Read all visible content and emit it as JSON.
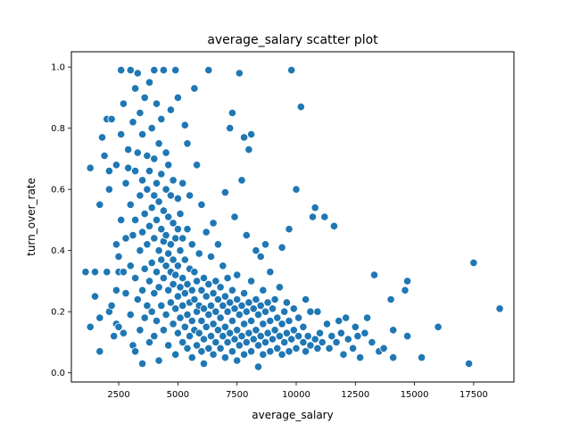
{
  "chart_data": {
    "type": "scatter",
    "title": "average_salary scatter plot",
    "xlabel": "average_salary",
    "ylabel": "turn_over_rate",
    "xlim": [
      500,
      19200
    ],
    "ylim": [
      -0.03,
      1.05
    ],
    "xticks": [
      2500,
      5000,
      7500,
      10000,
      12500,
      15000,
      17500
    ],
    "xtick_labels": [
      "2500",
      "5000",
      "7500",
      "10000",
      "12500",
      "15000",
      "17500"
    ],
    "yticks": [
      0.0,
      0.2,
      0.4,
      0.6,
      0.8,
      1.0
    ],
    "ytick_labels": [
      "0.0",
      "0.2",
      "0.4",
      "0.6",
      "0.8",
      "1.0"
    ],
    "grid": false,
    "legend": "none",
    "marker_color": "#1f77b4",
    "marker_edge": "#ffffff",
    "points": [
      [
        1100,
        0.33
      ],
      [
        1300,
        0.15
      ],
      [
        1300,
        0.67
      ],
      [
        1500,
        0.25
      ],
      [
        1500,
        0.33
      ],
      [
        1700,
        0.07
      ],
      [
        1700,
        0.18
      ],
      [
        1700,
        0.55
      ],
      [
        1800,
        0.77
      ],
      [
        1900,
        0.71
      ],
      [
        2000,
        0.33
      ],
      [
        2000,
        0.83
      ],
      [
        2100,
        0.2
      ],
      [
        2100,
        0.6
      ],
      [
        2100,
        0.66
      ],
      [
        2200,
        0.83
      ],
      [
        2200,
        0.22
      ],
      [
        2300,
        0.12
      ],
      [
        2400,
        0.16
      ],
      [
        2400,
        0.27
      ],
      [
        2400,
        0.42
      ],
      [
        2400,
        0.68
      ],
      [
        2500,
        0.38
      ],
      [
        2500,
        0.15
      ],
      [
        2500,
        0.33
      ],
      [
        2600,
        0.5
      ],
      [
        2600,
        0.78
      ],
      [
        2600,
        0.99
      ],
      [
        2700,
        0.88
      ],
      [
        2700,
        0.33
      ],
      [
        2700,
        0.13
      ],
      [
        2800,
        0.44
      ],
      [
        2800,
        0.62
      ],
      [
        2800,
        0.26
      ],
      [
        2900,
        0.73
      ],
      [
        2900,
        0.67
      ],
      [
        3000,
        0.55
      ],
      [
        3000,
        0.35
      ],
      [
        3000,
        0.19
      ],
      [
        3000,
        0.99
      ],
      [
        3100,
        0.09
      ],
      [
        3100,
        0.45
      ],
      [
        3100,
        0.82
      ],
      [
        3200,
        0.07
      ],
      [
        3200,
        0.5
      ],
      [
        3200,
        0.66
      ],
      [
        3200,
        0.31
      ],
      [
        3200,
        0.93
      ],
      [
        3300,
        0.24
      ],
      [
        3300,
        0.72
      ],
      [
        3300,
        0.98
      ],
      [
        3400,
        0.4
      ],
      [
        3400,
        0.58
      ],
      [
        3400,
        0.14
      ],
      [
        3400,
        0.85
      ],
      [
        3500,
        0.03
      ],
      [
        3500,
        0.27
      ],
      [
        3500,
        0.46
      ],
      [
        3500,
        0.63
      ],
      [
        3500,
        0.78
      ],
      [
        3600,
        0.34
      ],
      [
        3600,
        0.52
      ],
      [
        3600,
        0.18
      ],
      [
        3600,
        0.9
      ],
      [
        3700,
        0.42
      ],
      [
        3700,
        0.6
      ],
      [
        3700,
        0.22
      ],
      [
        3700,
        0.71
      ],
      [
        3800,
        0.1
      ],
      [
        3800,
        0.3
      ],
      [
        3800,
        0.48
      ],
      [
        3800,
        0.66
      ],
      [
        3800,
        0.95
      ],
      [
        3900,
        0.36
      ],
      [
        3900,
        0.54
      ],
      [
        3900,
        0.2
      ],
      [
        3900,
        0.8
      ],
      [
        4000,
        0.26
      ],
      [
        4000,
        0.44
      ],
      [
        4000,
        0.58
      ],
      [
        4000,
        0.12
      ],
      [
        4000,
        0.7
      ],
      [
        4000,
        0.99
      ],
      [
        4100,
        0.33
      ],
      [
        4100,
        0.5
      ],
      [
        4100,
        0.62
      ],
      [
        4100,
        0.17
      ],
      [
        4100,
        0.88
      ],
      [
        4200,
        0.04
      ],
      [
        4200,
        0.28
      ],
      [
        4200,
        0.4
      ],
      [
        4200,
        0.56
      ],
      [
        4200,
        0.75
      ],
      [
        4300,
        0.22
      ],
      [
        4300,
        0.37
      ],
      [
        4300,
        0.47
      ],
      [
        4300,
        0.65
      ],
      [
        4300,
        0.83
      ],
      [
        4400,
        0.14
      ],
      [
        4400,
        0.31
      ],
      [
        4400,
        0.43
      ],
      [
        4400,
        0.53
      ],
      [
        4400,
        0.99
      ],
      [
        4500,
        0.19
      ],
      [
        4500,
        0.35
      ],
      [
        4500,
        0.45
      ],
      [
        4500,
        0.6
      ],
      [
        4500,
        0.72
      ],
      [
        4600,
        0.09
      ],
      [
        4600,
        0.27
      ],
      [
        4600,
        0.39
      ],
      [
        4600,
        0.51
      ],
      [
        4600,
        0.68
      ],
      [
        4700,
        0.23
      ],
      [
        4700,
        0.33
      ],
      [
        4700,
        0.42
      ],
      [
        4700,
        0.58
      ],
      [
        4700,
        0.86
      ],
      [
        4800,
        0.16
      ],
      [
        4800,
        0.29
      ],
      [
        4800,
        0.37
      ],
      [
        4800,
        0.49
      ],
      [
        4800,
        0.63
      ],
      [
        4900,
        0.06
      ],
      [
        4900,
        0.21
      ],
      [
        4900,
        0.32
      ],
      [
        4900,
        0.44
      ],
      [
        4900,
        0.99
      ],
      [
        5000,
        0.13
      ],
      [
        5000,
        0.25
      ],
      [
        5000,
        0.35
      ],
      [
        5000,
        0.47
      ],
      [
        5000,
        0.57
      ],
      [
        5000,
        0.9
      ],
      [
        5100,
        0.18
      ],
      [
        5100,
        0.28
      ],
      [
        5100,
        0.4
      ],
      [
        5100,
        0.52
      ],
      [
        5200,
        0.1
      ],
      [
        5200,
        0.22
      ],
      [
        5200,
        0.31
      ],
      [
        5200,
        0.44
      ],
      [
        5200,
        0.62
      ],
      [
        5300,
        0.15
      ],
      [
        5300,
        0.26
      ],
      [
        5300,
        0.37
      ],
      [
        5300,
        0.81
      ],
      [
        5400,
        0.08
      ],
      [
        5400,
        0.19
      ],
      [
        5400,
        0.29
      ],
      [
        5400,
        0.47
      ],
      [
        5400,
        0.75
      ],
      [
        5500,
        0.12
      ],
      [
        5500,
        0.23
      ],
      [
        5500,
        0.34
      ],
      [
        5500,
        0.58
      ],
      [
        5600,
        0.05
      ],
      [
        5600,
        0.17
      ],
      [
        5600,
        0.27
      ],
      [
        5600,
        0.42
      ],
      [
        5700,
        0.14
      ],
      [
        5700,
        0.24
      ],
      [
        5700,
        0.33
      ],
      [
        5700,
        0.93
      ],
      [
        5800,
        0.09
      ],
      [
        5800,
        0.2
      ],
      [
        5800,
        0.3
      ],
      [
        5800,
        0.68
      ],
      [
        5900,
        0.13
      ],
      [
        5900,
        0.22
      ],
      [
        5900,
        0.39
      ],
      [
        6000,
        0.07
      ],
      [
        6000,
        0.17
      ],
      [
        6000,
        0.27
      ],
      [
        6000,
        0.55
      ],
      [
        6100,
        0.11
      ],
      [
        6100,
        0.21
      ],
      [
        6100,
        0.31
      ],
      [
        6100,
        0.03
      ],
      [
        6200,
        0.15
      ],
      [
        6200,
        0.25
      ],
      [
        6200,
        0.46
      ],
      [
        6300,
        0.08
      ],
      [
        6300,
        0.19
      ],
      [
        6300,
        0.29
      ],
      [
        6300,
        0.99
      ],
      [
        6400,
        0.12
      ],
      [
        6400,
        0.22
      ],
      [
        6400,
        0.38
      ],
      [
        6500,
        0.06
      ],
      [
        6500,
        0.16
      ],
      [
        6500,
        0.26
      ],
      [
        6500,
        0.49
      ],
      [
        6600,
        0.1
      ],
      [
        6600,
        0.2
      ],
      [
        6600,
        0.3
      ],
      [
        6700,
        0.14
      ],
      [
        6700,
        0.24
      ],
      [
        6700,
        0.42
      ],
      [
        6800,
        0.08
      ],
      [
        6800,
        0.18
      ],
      [
        6800,
        0.28
      ],
      [
        6900,
        0.12
      ],
      [
        6900,
        0.22
      ],
      [
        6900,
        0.35
      ],
      [
        7000,
        0.05
      ],
      [
        7000,
        0.15
      ],
      [
        7000,
        0.25
      ],
      [
        7000,
        0.59
      ],
      [
        7100,
        0.1
      ],
      [
        7100,
        0.2
      ],
      [
        7100,
        0.31
      ],
      [
        7200,
        0.13
      ],
      [
        7200,
        0.23
      ],
      [
        7200,
        0.8
      ],
      [
        7300,
        0.07
      ],
      [
        7300,
        0.17
      ],
      [
        7300,
        0.27
      ],
      [
        7300,
        0.85
      ],
      [
        7400,
        0.11
      ],
      [
        7400,
        0.21
      ],
      [
        7400,
        0.51
      ],
      [
        7500,
        0.04
      ],
      [
        7500,
        0.14
      ],
      [
        7500,
        0.24
      ],
      [
        7500,
        0.32
      ],
      [
        7600,
        0.09
      ],
      [
        7600,
        0.19
      ],
      [
        7600,
        0.98
      ],
      [
        7700,
        0.12
      ],
      [
        7700,
        0.22
      ],
      [
        7700,
        0.63
      ],
      [
        7800,
        0.06
      ],
      [
        7800,
        0.16
      ],
      [
        7800,
        0.26
      ],
      [
        7800,
        0.77
      ],
      [
        7900,
        0.1
      ],
      [
        7900,
        0.2
      ],
      [
        7900,
        0.45
      ],
      [
        8000,
        0.13
      ],
      [
        8000,
        0.23
      ],
      [
        8000,
        0.73
      ],
      [
        8100,
        0.07
      ],
      [
        8100,
        0.17
      ],
      [
        8100,
        0.3
      ],
      [
        8100,
        0.78
      ],
      [
        8200,
        0.11
      ],
      [
        8200,
        0.21
      ],
      [
        8300,
        0.14
      ],
      [
        8300,
        0.24
      ],
      [
        8300,
        0.4
      ],
      [
        8400,
        0.02
      ],
      [
        8400,
        0.09
      ],
      [
        8400,
        0.19
      ],
      [
        8500,
        0.12
      ],
      [
        8500,
        0.22
      ],
      [
        8500,
        0.38
      ],
      [
        8600,
        0.06
      ],
      [
        8600,
        0.16
      ],
      [
        8600,
        0.27
      ],
      [
        8700,
        0.1
      ],
      [
        8700,
        0.2
      ],
      [
        8700,
        0.42
      ],
      [
        8800,
        0.13
      ],
      [
        8800,
        0.23
      ],
      [
        8900,
        0.07
      ],
      [
        8900,
        0.17
      ],
      [
        8900,
        0.33
      ],
      [
        9000,
        0.11
      ],
      [
        9000,
        0.21
      ],
      [
        9100,
        0.14
      ],
      [
        9100,
        0.24
      ],
      [
        9200,
        0.08
      ],
      [
        9200,
        0.18
      ],
      [
        9300,
        0.12
      ],
      [
        9300,
        0.28
      ],
      [
        9400,
        0.06
      ],
      [
        9400,
        0.16
      ],
      [
        9400,
        0.41
      ],
      [
        9500,
        0.1
      ],
      [
        9500,
        0.2
      ],
      [
        9600,
        0.13
      ],
      [
        9600,
        0.23
      ],
      [
        9700,
        0.07
      ],
      [
        9700,
        0.17
      ],
      [
        9700,
        0.47
      ],
      [
        9800,
        0.11
      ],
      [
        9800,
        0.99
      ],
      [
        9900,
        0.14
      ],
      [
        9900,
        0.21
      ],
      [
        10000,
        0.08
      ],
      [
        10000,
        0.6
      ],
      [
        10100,
        0.12
      ],
      [
        10100,
        0.18
      ],
      [
        10200,
        0.87
      ],
      [
        10300,
        0.1
      ],
      [
        10300,
        0.15
      ],
      [
        10400,
        0.07
      ],
      [
        10400,
        0.24
      ],
      [
        10500,
        0.12
      ],
      [
        10600,
        0.09
      ],
      [
        10600,
        0.2
      ],
      [
        10700,
        0.51
      ],
      [
        10800,
        0.11
      ],
      [
        10800,
        0.54
      ],
      [
        10900,
        0.08
      ],
      [
        10900,
        0.2
      ],
      [
        11000,
        0.13
      ],
      [
        11100,
        0.1
      ],
      [
        11200,
        0.51
      ],
      [
        11300,
        0.16
      ],
      [
        11400,
        0.08
      ],
      [
        11500,
        0.12
      ],
      [
        11600,
        0.48
      ],
      [
        11700,
        0.1
      ],
      [
        11800,
        0.17
      ],
      [
        11900,
        0.13
      ],
      [
        12000,
        0.06
      ],
      [
        12100,
        0.18
      ],
      [
        12200,
        0.11
      ],
      [
        12400,
        0.08
      ],
      [
        12500,
        0.15
      ],
      [
        12600,
        0.12
      ],
      [
        12700,
        0.05
      ],
      [
        12900,
        0.13
      ],
      [
        13000,
        0.18
      ],
      [
        13200,
        0.1
      ],
      [
        13300,
        0.32
      ],
      [
        13500,
        0.07
      ],
      [
        13700,
        0.08
      ],
      [
        14000,
        0.24
      ],
      [
        14100,
        0.14
      ],
      [
        14100,
        0.05
      ],
      [
        14600,
        0.27
      ],
      [
        14700,
        0.3
      ],
      [
        14700,
        0.12
      ],
      [
        15300,
        0.05
      ],
      [
        16000,
        0.15
      ],
      [
        17300,
        0.03
      ],
      [
        17500,
        0.36
      ],
      [
        18600,
        0.21
      ]
    ]
  }
}
